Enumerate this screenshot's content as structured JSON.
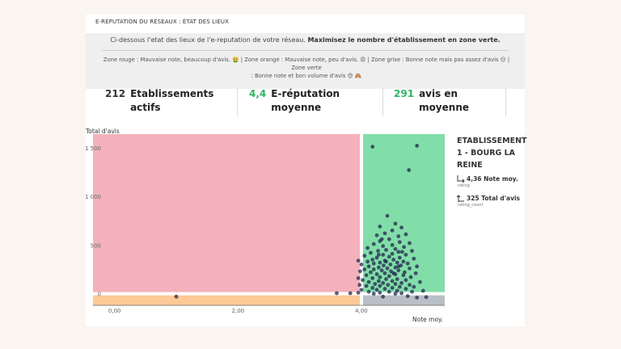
{
  "header": {
    "title": "E-REPUTATION DU RÉSEAUX : ÉTAT DES LIEUX",
    "intro_normal": "Ci-dessous l'etat des lieux de l'e-reputation de votre réseau. ",
    "intro_bold": "Maximisez le nombre d'établissement en zone verte.",
    "zones_line1": "Zone rouge : Mauvaise note, beaucoup d'avis. 🤮 | Zone orange : Mauvaise note, peu d'avis. 😡 | Zone grise : Bonne note mais pas assez d'avis 😔 | Zone verte",
    "zones_line2": ": Bonne note et bon volume d'avis 😍 🙈"
  },
  "kpis": [
    {
      "value": "212",
      "label1": "Etablissements",
      "label2": "actifs",
      "color": "#333333"
    },
    {
      "value": "4,4",
      "label1": "E-réputation",
      "label2": "moyenne",
      "color": "#2fb463"
    },
    {
      "value": "291",
      "label1": "avis en",
      "label2": "moyenne",
      "color": "#2fb463"
    }
  ],
  "side_panel": {
    "title_lines": [
      "ETABLISSEMENT",
      "1 - BOURG LA",
      "REINE"
    ],
    "note_value": "4,36 Note moy.",
    "note_sub": "rating",
    "count_value": "325 Total d'avis",
    "count_sub": "rating_count"
  },
  "chart_data": {
    "type": "scatter",
    "xlabel": "Note moy.",
    "ylabel": "Total d'avis",
    "xlim": [
      -0.35,
      5.35
    ],
    "ylim": [
      -120,
      1640
    ],
    "x_ticks": [
      {
        "v": 0,
        "label": "0,00"
      },
      {
        "v": 2,
        "label": "2,00"
      },
      {
        "v": 4,
        "label": "4,00"
      }
    ],
    "y_ticks": [
      {
        "v": 0,
        "label": "0"
      },
      {
        "v": 500,
        "label": "500"
      },
      {
        "v": 1000,
        "label": "1 000"
      },
      {
        "v": 1500,
        "label": "1 500"
      }
    ],
    "thresholds": {
      "x": 4.0,
      "y": 0
    },
    "zones": {
      "red": "#f4b1bb",
      "orange": "#fdc996",
      "grey": "#b9bfc7",
      "green": "#82dea8"
    },
    "point_color": "#1d1e4a",
    "points": [
      [
        4.18,
        1510
      ],
      [
        4.9,
        1520
      ],
      [
        4.77,
        1270
      ],
      [
        4.42,
        800
      ],
      [
        4.55,
        720
      ],
      [
        4.3,
        690
      ],
      [
        4.65,
        680
      ],
      [
        4.5,
        650
      ],
      [
        4.38,
        620
      ],
      [
        4.72,
        610
      ],
      [
        4.25,
        600
      ],
      [
        4.6,
        590
      ],
      [
        4.45,
        560
      ],
      [
        4.3,
        540
      ],
      [
        4.62,
        530
      ],
      [
        4.78,
        520
      ],
      [
        4.2,
        510
      ],
      [
        4.5,
        500
      ],
      [
        4.35,
        490
      ],
      [
        4.69,
        480
      ],
      [
        4.1,
        470
      ],
      [
        4.55,
        460
      ],
      [
        4.4,
        450
      ],
      [
        4.27,
        440
      ],
      [
        4.82,
        440
      ],
      [
        4.6,
        430
      ],
      [
        4.15,
        420
      ],
      [
        4.5,
        410
      ],
      [
        4.35,
        400
      ],
      [
        4.72,
        400
      ],
      [
        4.05,
        390
      ],
      [
        4.45,
        380
      ],
      [
        4.25,
        370
      ],
      [
        4.62,
        370
      ],
      [
        4.85,
        360
      ],
      [
        4.18,
        350
      ],
      [
        4.52,
        350
      ],
      [
        3.95,
        340
      ],
      [
        4.38,
        340
      ],
      [
        4.68,
        330
      ],
      [
        4.1,
        330
      ],
      [
        4.3,
        320
      ],
      [
        4.58,
        320
      ],
      [
        4.75,
        310
      ],
      [
        4.2,
        310
      ],
      [
        4.47,
        300
      ],
      [
        4.0,
        300
      ],
      [
        4.36,
        290
      ],
      [
        4.64,
        290
      ],
      [
        4.9,
        280
      ],
      [
        4.12,
        280
      ],
      [
        4.28,
        270
      ],
      [
        4.55,
        270
      ],
      [
        4.42,
        260
      ],
      [
        4.78,
        260
      ],
      [
        4.05,
        250
      ],
      [
        4.2,
        250
      ],
      [
        4.6,
        240
      ],
      [
        4.33,
        240
      ],
      [
        4.48,
        230
      ],
      [
        3.98,
        230
      ],
      [
        4.7,
        220
      ],
      [
        4.15,
        220
      ],
      [
        4.88,
        210
      ],
      [
        4.38,
        210
      ],
      [
        4.55,
        200
      ],
      [
        4.25,
        200
      ],
      [
        4.08,
        190
      ],
      [
        4.68,
        190
      ],
      [
        4.45,
        180
      ],
      [
        4.3,
        170
      ],
      [
        4.8,
        170
      ],
      [
        3.95,
        160
      ],
      [
        4.18,
        160
      ],
      [
        4.58,
        150
      ],
      [
        4.4,
        150
      ],
      [
        4.72,
        140
      ],
      [
        4.02,
        140
      ],
      [
        4.28,
        130
      ],
      [
        4.5,
        130
      ],
      [
        4.95,
        120
      ],
      [
        4.12,
        120
      ],
      [
        4.65,
        110
      ],
      [
        4.35,
        110
      ],
      [
        4.22,
        100
      ],
      [
        4.55,
        100
      ],
      [
        3.97,
        90
      ],
      [
        4.43,
        90
      ],
      [
        4.78,
        90
      ],
      [
        4.08,
        80
      ],
      [
        4.3,
        80
      ],
      [
        4.62,
        70
      ],
      [
        4.85,
        70
      ],
      [
        4.18,
        60
      ],
      [
        4.5,
        60
      ],
      [
        4.38,
        50
      ],
      [
        4.72,
        50
      ],
      [
        4.0,
        40
      ],
      [
        4.25,
        40
      ],
      [
        4.58,
        30
      ],
      [
        5.0,
        30
      ],
      [
        4.12,
        20
      ],
      [
        4.45,
        20
      ],
      [
        4.82,
        20
      ],
      [
        4.3,
        10
      ],
      [
        3.95,
        10
      ],
      [
        4.65,
        5
      ],
      [
        4.2,
        0
      ],
      [
        4.55,
        0
      ],
      [
        3.6,
        5
      ],
      [
        3.82,
        5
      ],
      [
        1.0,
        -30
      ],
      [
        5.05,
        -35
      ],
      [
        4.75,
        -25
      ],
      [
        4.35,
        -30
      ],
      [
        4.9,
        -40
      ],
      [
        4.52,
        210
      ],
      [
        4.6,
        280
      ],
      [
        4.4,
        330
      ],
      [
        4.28,
        400
      ],
      [
        4.66,
        430
      ],
      [
        4.33,
        560
      ]
    ]
  }
}
